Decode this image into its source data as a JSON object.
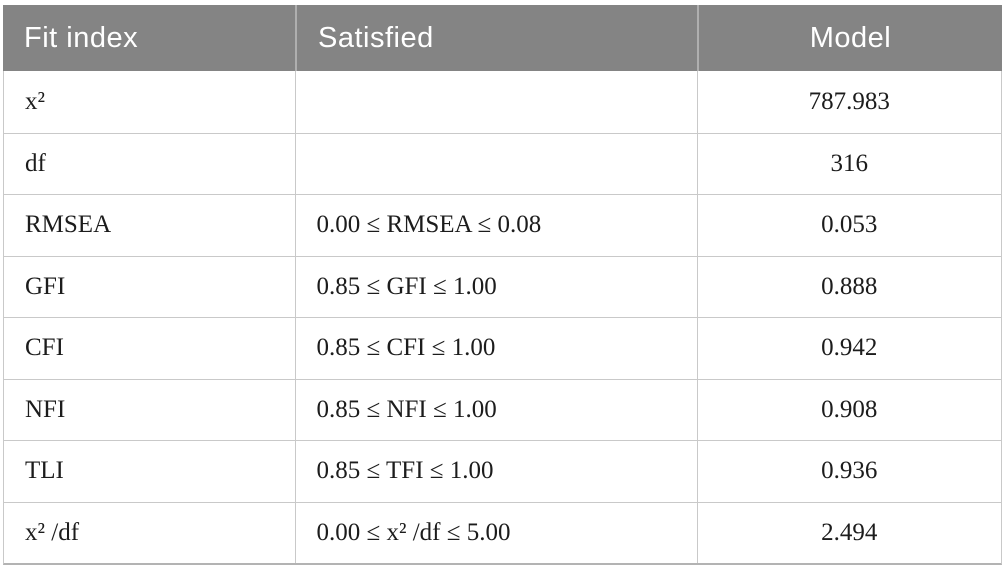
{
  "header": {
    "fit_index": "Fit index",
    "satisfied": "Satisfied",
    "model": "Model"
  },
  "rows": [
    {
      "fit_index": "x²",
      "satisfied": "",
      "model": "787.983"
    },
    {
      "fit_index": "df",
      "satisfied": "",
      "model": "316"
    },
    {
      "fit_index": "RMSEA",
      "satisfied": "0.00 ≤ RMSEA ≤ 0.08",
      "model": "0.053"
    },
    {
      "fit_index": "GFI",
      "satisfied": "0.85 ≤ GFI ≤ 1.00",
      "model": "0.888"
    },
    {
      "fit_index": "CFI",
      "satisfied": "0.85 ≤ CFI ≤ 1.00",
      "model": "0.942"
    },
    {
      "fit_index": "NFI",
      "satisfied": "0.85 ≤ NFI ≤ 1.00",
      "model": "0.908"
    },
    {
      "fit_index": "TLI",
      "satisfied": "0.85 ≤ TFI ≤ 1.00",
      "model": "0.936"
    },
    {
      "fit_index": "x² /df",
      "satisfied": "0.00 ≤ x² /df ≤ 5.00",
      "model": "2.494"
    }
  ],
  "colors": {
    "header_bg": "#848484",
    "header_text": "#ffffff",
    "body_text": "#1c1c1c",
    "grid_line": "#c9c9c9",
    "bottom_border": "#b3b3b3"
  }
}
